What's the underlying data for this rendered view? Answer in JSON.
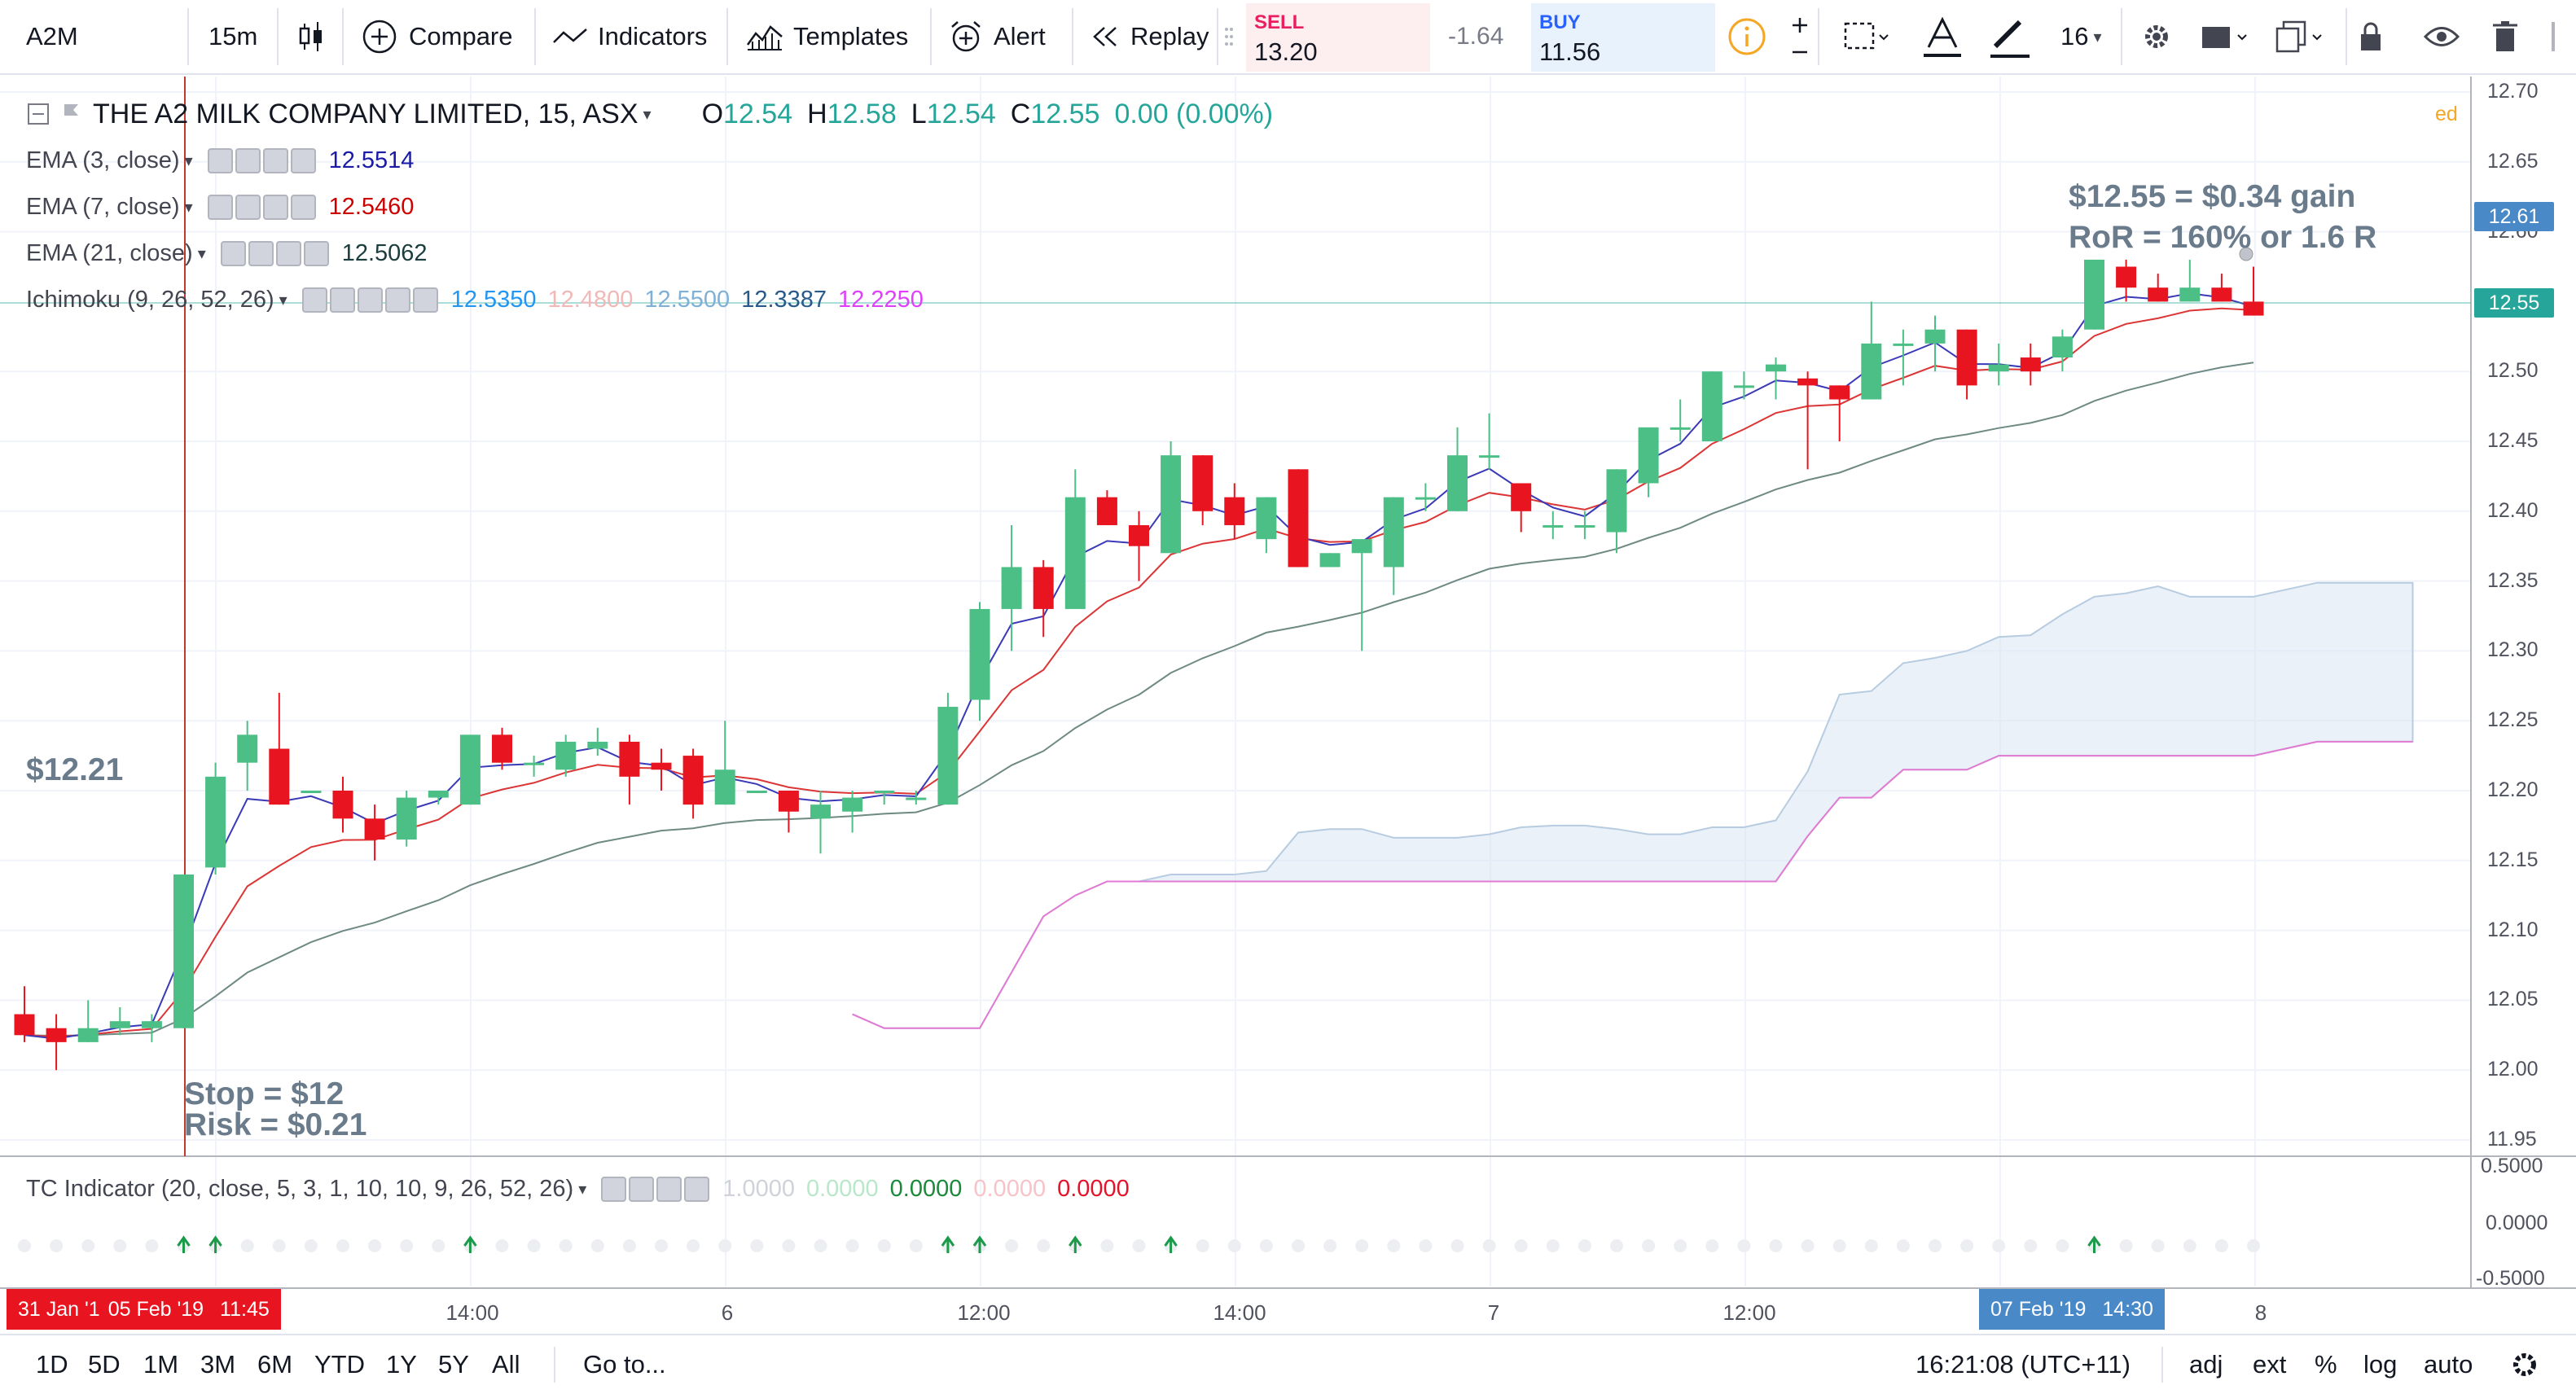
{
  "toolbar": {
    "symbol": "A2M",
    "interval": "15m",
    "compare": "Compare",
    "indicators": "Indicators",
    "templates": "Templates",
    "alert": "Alert",
    "replay": "Replay",
    "sell": {
      "label": "SELL",
      "price": "13.20"
    },
    "spread": "-1.64",
    "buy": {
      "label": "BUY",
      "price": "11.56"
    },
    "font_size": "16",
    "colors": {
      "sell_bg": "#fdeef0",
      "sell_text": "#e91e63",
      "buy_bg": "#e8f2fd",
      "buy_text": "#2962ff",
      "info": "#f5a623"
    }
  },
  "legend": {
    "title": "THE A2 MILK COMPANY LIMITED, 15, ASX",
    "ohlc": {
      "o_label": "O",
      "o": "12.54",
      "h_label": "H",
      "h": "12.58",
      "l_label": "L",
      "l": "12.54",
      "c_label": "C",
      "c": "12.55",
      "change": "0.00 (0.00%)"
    },
    "indicators": [
      {
        "name": "EMA (3, close)",
        "values": [
          "12.5514"
        ],
        "colors": [
          "#1a1aa6"
        ]
      },
      {
        "name": "EMA (7, close)",
        "values": [
          "12.5460"
        ],
        "colors": [
          "#cc0000"
        ]
      },
      {
        "name": "EMA (21, close)",
        "values": [
          "12.5062"
        ],
        "colors": [
          "#1b3d3d"
        ]
      },
      {
        "name": "Ichimoku (9, 26, 52, 26)",
        "values": [
          "12.5350",
          "12.4800",
          "12.5500",
          "12.3387",
          "12.2250"
        ],
        "colors": [
          "#2196f3",
          "#f2b8b8",
          "#7fb1d8",
          "#2a5a8a",
          "#e040fb"
        ]
      }
    ]
  },
  "annotations": {
    "entry_price": "$12.21",
    "gain": "$12.55 = $0.34 gain",
    "ror": "RoR = 160% or 1.6 R",
    "stop": "Stop = $12",
    "risk": "Risk = $0.21"
  },
  "price_axis": {
    "ticks": [
      "12.70",
      "12.65",
      "12.60",
      "12.50",
      "12.45",
      "12.40",
      "12.35",
      "12.30",
      "12.25",
      "12.20",
      "12.15",
      "12.10",
      "12.05",
      "12.00",
      "11.95"
    ],
    "tag_high": "12.61",
    "tag_last": "12.55",
    "partial_label": "ed"
  },
  "tc_indicator": {
    "name": "TC Indicator (20, close, 5, 3, 1, 10, 10, 9, 26, 52, 26)",
    "values": [
      "1.0000",
      "0.0000",
      "0.0000",
      "0.0000",
      "0.0000"
    ],
    "value_colors": [
      "#cfd2d8",
      "#b9e8c9",
      "#1b8a3a",
      "#f6c3c8",
      "#e0152b"
    ],
    "axis": [
      "0.5000",
      "0.0000",
      "-0.5000"
    ]
  },
  "time_axis": {
    "labels": [
      "14:00",
      "6",
      "12:00",
      "14:00",
      "7",
      "12:00",
      "8"
    ],
    "range_start": "31 Jan '1",
    "range_date": "05 Feb '19",
    "range_time": "11:45",
    "range_end_date": "07 Feb '19",
    "range_end_time": "14:30"
  },
  "bottom": {
    "ranges": [
      "1D",
      "5D",
      "1M",
      "3M",
      "6M",
      "YTD",
      "1Y",
      "5Y",
      "All"
    ],
    "goto": "Go to...",
    "clock": "16:21:08 (UTC+11)",
    "options": [
      "adj",
      "ext",
      "%",
      "log",
      "auto"
    ]
  },
  "chart_data": {
    "type": "candlestick",
    "ylim": [
      11.95,
      12.7
    ],
    "candles": [
      {
        "o": 12.04,
        "h": 12.06,
        "l": 12.02,
        "c": 12.025
      },
      {
        "o": 12.03,
        "h": 12.04,
        "l": 12.0,
        "c": 12.02
      },
      {
        "o": 12.02,
        "h": 12.05,
        "l": 12.02,
        "c": 12.03
      },
      {
        "o": 12.03,
        "h": 12.045,
        "l": 12.025,
        "c": 12.035
      },
      {
        "o": 12.03,
        "h": 12.04,
        "l": 12.02,
        "c": 12.035
      },
      {
        "o": 12.03,
        "h": 12.14,
        "l": 12.03,
        "c": 12.14
      },
      {
        "o": 12.145,
        "h": 12.22,
        "l": 12.14,
        "c": 12.21
      },
      {
        "o": 12.22,
        "h": 12.25,
        "l": 12.2,
        "c": 12.24
      },
      {
        "o": 12.23,
        "h": 12.27,
        "l": 12.19,
        "c": 12.19
      },
      {
        "o": 12.2,
        "h": 12.2,
        "l": 12.2,
        "c": 12.2
      },
      {
        "o": 12.2,
        "h": 12.21,
        "l": 12.17,
        "c": 12.18
      },
      {
        "o": 12.18,
        "h": 12.19,
        "l": 12.15,
        "c": 12.165
      },
      {
        "o": 12.165,
        "h": 12.2,
        "l": 12.16,
        "c": 12.195
      },
      {
        "o": 12.195,
        "h": 12.2,
        "l": 12.19,
        "c": 12.2
      },
      {
        "o": 12.19,
        "h": 12.24,
        "l": 12.19,
        "c": 12.24
      },
      {
        "o": 12.24,
        "h": 12.245,
        "l": 12.215,
        "c": 12.22
      },
      {
        "o": 12.22,
        "h": 12.225,
        "l": 12.21,
        "c": 12.22
      },
      {
        "o": 12.215,
        "h": 12.24,
        "l": 12.21,
        "c": 12.235
      },
      {
        "o": 12.23,
        "h": 12.245,
        "l": 12.225,
        "c": 12.235
      },
      {
        "o": 12.235,
        "h": 12.24,
        "l": 12.19,
        "c": 12.21
      },
      {
        "o": 12.22,
        "h": 12.23,
        "l": 12.2,
        "c": 12.215
      },
      {
        "o": 12.225,
        "h": 12.23,
        "l": 12.18,
        "c": 12.19
      },
      {
        "o": 12.19,
        "h": 12.25,
        "l": 12.19,
        "c": 12.215
      },
      {
        "o": 12.2,
        "h": 12.2,
        "l": 12.2,
        "c": 12.2
      },
      {
        "o": 12.2,
        "h": 12.2,
        "l": 12.17,
        "c": 12.185
      },
      {
        "o": 12.18,
        "h": 12.2,
        "l": 12.155,
        "c": 12.19
      },
      {
        "o": 12.185,
        "h": 12.2,
        "l": 12.17,
        "c": 12.195
      },
      {
        "o": 12.2,
        "h": 12.2,
        "l": 12.19,
        "c": 12.2
      },
      {
        "o": 12.195,
        "h": 12.2,
        "l": 12.19,
        "c": 12.195
      },
      {
        "o": 12.19,
        "h": 12.27,
        "l": 12.19,
        "c": 12.26
      },
      {
        "o": 12.265,
        "h": 12.335,
        "l": 12.25,
        "c": 12.33
      },
      {
        "o": 12.33,
        "h": 12.39,
        "l": 12.3,
        "c": 12.36
      },
      {
        "o": 12.36,
        "h": 12.365,
        "l": 12.31,
        "c": 12.33
      },
      {
        "o": 12.33,
        "h": 12.43,
        "l": 12.33,
        "c": 12.41
      },
      {
        "o": 12.41,
        "h": 12.415,
        "l": 12.39,
        "c": 12.39
      },
      {
        "o": 12.39,
        "h": 12.4,
        "l": 12.35,
        "c": 12.375
      },
      {
        "o": 12.37,
        "h": 12.45,
        "l": 12.37,
        "c": 12.44
      },
      {
        "o": 12.44,
        "h": 12.44,
        "l": 12.39,
        "c": 12.4
      },
      {
        "o": 12.41,
        "h": 12.42,
        "l": 12.38,
        "c": 12.39
      },
      {
        "o": 12.38,
        "h": 12.41,
        "l": 12.37,
        "c": 12.41
      },
      {
        "o": 12.43,
        "h": 12.43,
        "l": 12.36,
        "c": 12.36
      },
      {
        "o": 12.36,
        "h": 12.37,
        "l": 12.36,
        "c": 12.37
      },
      {
        "o": 12.37,
        "h": 12.38,
        "l": 12.3,
        "c": 12.38
      },
      {
        "o": 12.36,
        "h": 12.41,
        "l": 12.34,
        "c": 12.41
      },
      {
        "o": 12.41,
        "h": 12.42,
        "l": 12.4,
        "c": 12.41
      },
      {
        "o": 12.4,
        "h": 12.46,
        "l": 12.4,
        "c": 12.44
      },
      {
        "o": 12.44,
        "h": 12.47,
        "l": 12.43,
        "c": 12.44
      },
      {
        "o": 12.42,
        "h": 12.42,
        "l": 12.385,
        "c": 12.4
      },
      {
        "o": 12.39,
        "h": 12.4,
        "l": 12.38,
        "c": 12.39
      },
      {
        "o": 12.39,
        "h": 12.4,
        "l": 12.38,
        "c": 12.39
      },
      {
        "o": 12.385,
        "h": 12.43,
        "l": 12.37,
        "c": 12.43
      },
      {
        "o": 12.42,
        "h": 12.46,
        "l": 12.41,
        "c": 12.46
      },
      {
        "o": 12.46,
        "h": 12.48,
        "l": 12.45,
        "c": 12.46
      },
      {
        "o": 12.45,
        "h": 12.5,
        "l": 12.45,
        "c": 12.5
      },
      {
        "o": 12.49,
        "h": 12.5,
        "l": 12.48,
        "c": 12.49
      },
      {
        "o": 12.5,
        "h": 12.51,
        "l": 12.48,
        "c": 12.505
      },
      {
        "o": 12.495,
        "h": 12.5,
        "l": 12.43,
        "c": 12.49
      },
      {
        "o": 12.49,
        "h": 12.49,
        "l": 12.45,
        "c": 12.48
      },
      {
        "o": 12.48,
        "h": 12.55,
        "l": 12.48,
        "c": 12.52
      },
      {
        "o": 12.52,
        "h": 12.53,
        "l": 12.49,
        "c": 12.52
      },
      {
        "o": 12.52,
        "h": 12.54,
        "l": 12.5,
        "c": 12.53
      },
      {
        "o": 12.53,
        "h": 12.53,
        "l": 12.48,
        "c": 12.49
      },
      {
        "o": 12.5,
        "h": 12.52,
        "l": 12.49,
        "c": 12.505
      },
      {
        "o": 12.51,
        "h": 12.52,
        "l": 12.49,
        "c": 12.5
      },
      {
        "o": 12.51,
        "h": 12.53,
        "l": 12.5,
        "c": 12.525
      },
      {
        "o": 12.53,
        "h": 12.58,
        "l": 12.53,
        "c": 12.58
      },
      {
        "o": 12.575,
        "h": 12.58,
        "l": 12.55,
        "c": 12.56
      },
      {
        "o": 12.56,
        "h": 12.57,
        "l": 12.55,
        "c": 12.55
      },
      {
        "o": 12.55,
        "h": 12.58,
        "l": 12.55,
        "c": 12.56
      },
      {
        "o": 12.56,
        "h": 12.57,
        "l": 12.55,
        "c": 12.55
      },
      {
        "o": 12.55,
        "h": 12.575,
        "l": 12.54,
        "c": 12.54
      }
    ]
  }
}
